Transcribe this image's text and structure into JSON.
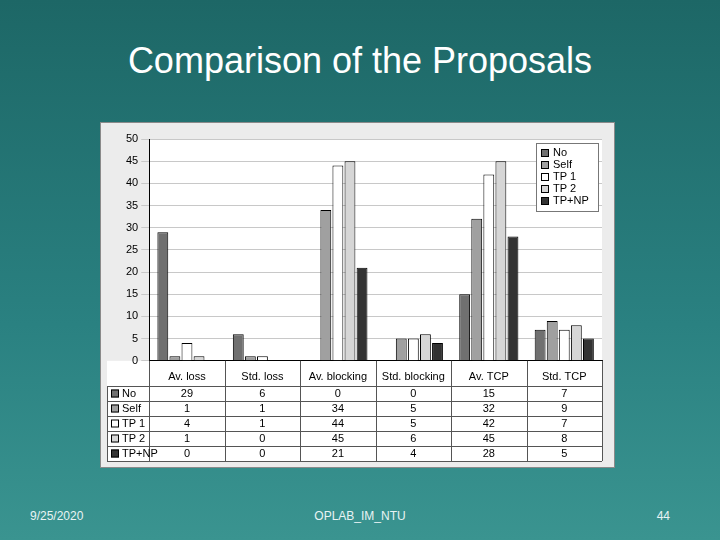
{
  "slide": {
    "title": "Comparison of the Proposals",
    "date": "9/25/2020",
    "footer": "OPLAB_IM_NTU",
    "page": "44"
  },
  "chart_data": {
    "type": "bar",
    "categories": [
      "Av. loss",
      "Std. loss",
      "Av. blocking",
      "Std. blocking",
      "Av. TCP",
      "Std. TCP"
    ],
    "series": [
      {
        "name": "No",
        "color": "#707070",
        "values": [
          29,
          6,
          0,
          0,
          15,
          7
        ]
      },
      {
        "name": "Self",
        "color": "#a0a0a0",
        "values": [
          1,
          1,
          34,
          5,
          32,
          9
        ]
      },
      {
        "name": "TP 1",
        "color": "#ffffff",
        "values": [
          4,
          1,
          44,
          5,
          42,
          7
        ]
      },
      {
        "name": "TP 2",
        "color": "#d6d6d6",
        "values": [
          1,
          0,
          45,
          6,
          45,
          8
        ]
      },
      {
        "name": "TP+NP",
        "color": "#333333",
        "values": [
          0,
          0,
          21,
          4,
          28,
          5
        ]
      }
    ],
    "ylim": [
      0,
      50
    ],
    "yticks": [
      0,
      5,
      10,
      15,
      20,
      25,
      30,
      35,
      40,
      45,
      50
    ],
    "grid": true,
    "legend": "top-right"
  }
}
